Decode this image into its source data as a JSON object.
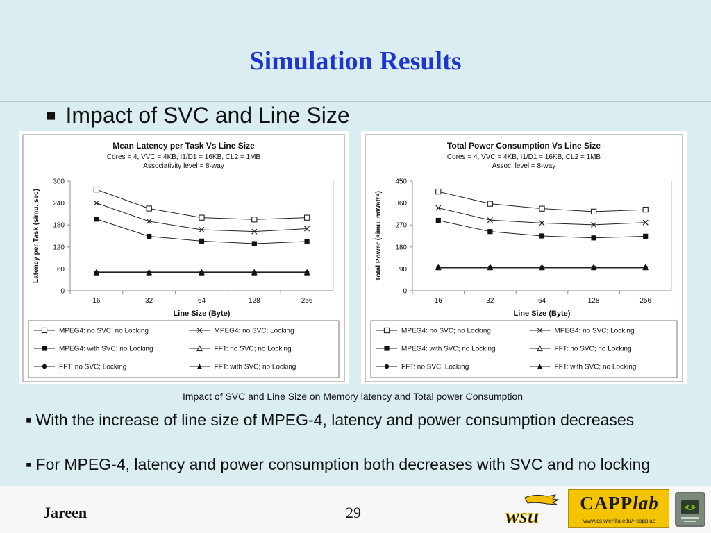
{
  "slide": {
    "title": "Simulation Results",
    "bullet_symbol": "■",
    "bullet": "Impact of SVC and Line Size",
    "caption": "Impact of SVC and Line Size on Memory latency and Total power Consumption",
    "points": [
      "▪  With the increase of line size of MPEG-4, latency and power consumption decreases",
      "▪ For MPEG-4, latency and power consumption both decreases with SVC and no locking"
    ]
  },
  "footer": {
    "author": "Jareen",
    "page": "29",
    "lab_logo_name": "CAPP",
    "lab_logo_suffix": "lab",
    "lab_url": "www.cs.wichita.edu/~capplab"
  },
  "chart_data": [
    {
      "type": "line",
      "title": "Mean Latency per Task Vs Line  Size",
      "subtitle": [
        "Cores = 4, VVC = 4KB, I1/D1 = 16KB, CL2 = 1MB",
        "Associativity level = 8-way"
      ],
      "xlabel": "Line Size (Byte)",
      "ylabel": "Latency per Task (simu. sec)",
      "categories": [
        "16",
        "32",
        "64",
        "128",
        "256"
      ],
      "ylim": [
        0,
        300
      ],
      "yticks": [
        "0",
        "60",
        "120",
        "180",
        "240",
        "300"
      ],
      "grid": false,
      "legend_position": "bottom",
      "series": [
        {
          "name": "MPEG4: no SVC; no Locking",
          "marker": "square-open",
          "values": [
            277,
            225,
            200,
            195,
            200
          ]
        },
        {
          "name": "MPEG4: no SVC; Locking",
          "marker": "x",
          "values": [
            240,
            190,
            167,
            162,
            170
          ]
        },
        {
          "name": "MPEG4: with SVC; no Locking",
          "marker": "square-filled",
          "values": [
            196,
            149,
            136,
            129,
            135
          ]
        },
        {
          "name": "FFT: no SVC; no Locking",
          "marker": "triangle-open",
          "values": [
            51,
            51,
            51,
            51,
            51
          ]
        },
        {
          "name": "FFT: no SVC; Locking",
          "marker": "circle-filled",
          "values": [
            50,
            50,
            50,
            50,
            50
          ]
        },
        {
          "name": "FFT: with SVC; no Locking",
          "marker": "triangle-filled",
          "values": [
            49,
            49,
            49,
            49,
            49
          ]
        }
      ]
    },
    {
      "type": "line",
      "title": "Total Power Consumption  Vs Line  Size",
      "subtitle": [
        "Cores = 4, VVC = 4KB, I1/D1 = 16KB, CL2 = 1MB",
        "Assoc. level = 8-way"
      ],
      "xlabel": "Line Size (Byte)",
      "ylabel": "Total Power (simu. mWatts)",
      "categories": [
        "16",
        "32",
        "64",
        "128",
        "256"
      ],
      "ylim": [
        0,
        450
      ],
      "yticks": [
        "0",
        "90",
        "180",
        "270",
        "360",
        "450"
      ],
      "grid": false,
      "legend_position": "bottom",
      "series": [
        {
          "name": "MPEG4: no SVC; no Locking",
          "marker": "square-open",
          "values": [
            407,
            357,
            337,
            325,
            333
          ]
        },
        {
          "name": "MPEG4: no SVC; Locking",
          "marker": "x",
          "values": [
            340,
            290,
            278,
            271,
            280
          ]
        },
        {
          "name": "MPEG4: with SVC; no Locking",
          "marker": "square-filled",
          "values": [
            289,
            243,
            225,
            217,
            224
          ]
        },
        {
          "name": "FFT: no SVC; no Locking",
          "marker": "triangle-open",
          "values": [
            97,
            97,
            97,
            97,
            97
          ]
        },
        {
          "name": "FFT: no SVC; Locking",
          "marker": "circle-filled",
          "values": [
            96,
            96,
            96,
            96,
            96
          ]
        },
        {
          "name": "FFT: with SVC; no Locking",
          "marker": "triangle-filled",
          "values": [
            95,
            95,
            95,
            95,
            95
          ]
        }
      ]
    }
  ]
}
